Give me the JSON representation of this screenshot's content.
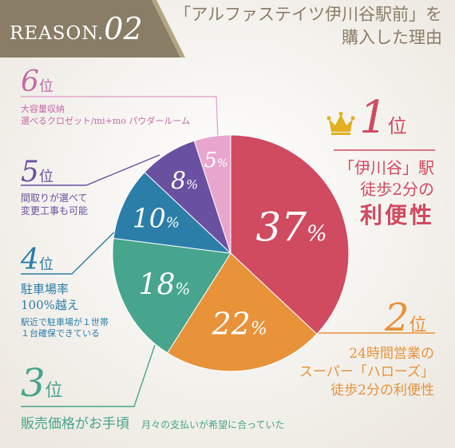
{
  "header": {
    "badge_prefix": "REASON.",
    "badge_num": "02",
    "title_line1": "「アルファステイツ伊川谷駅前」を",
    "title_line2": "購入した理由"
  },
  "colors": {
    "header_band": "#8a7d66",
    "accent_gold": "#a89565",
    "rank1": "#d04a60",
    "rank2": "#e8923a",
    "rank3": "#46a58c",
    "rank4": "#2b7ea8",
    "rank5": "#6a50a0",
    "rank6": "#e8a6cf",
    "crown": "#e0b020"
  },
  "chart_data": {
    "type": "pie",
    "title": "",
    "slices": [
      {
        "rank": 1,
        "value": 37,
        "label": "37",
        "unit": "%"
      },
      {
        "rank": 2,
        "value": 22,
        "label": "22",
        "unit": "%"
      },
      {
        "rank": 3,
        "value": 18,
        "label": "18",
        "unit": "%"
      },
      {
        "rank": 4,
        "value": 10,
        "label": "10",
        "unit": "%"
      },
      {
        "rank": 5,
        "value": 8,
        "label": "8",
        "unit": "%"
      },
      {
        "rank": 6,
        "value": 5,
        "label": "5",
        "unit": "%"
      }
    ],
    "start_angle": "top",
    "direction": "clockwise"
  },
  "ranks": {
    "suffix": "位",
    "r1": {
      "num": "1",
      "line1": "「伊川谷」駅",
      "line2": "徒歩2分の",
      "line3": "利便性"
    },
    "r2": {
      "num": "2",
      "line1": "24時間営業の",
      "line2": "スーパー「ハローズ」",
      "line3": "徒歩2分の利便性"
    },
    "r3": {
      "num": "3",
      "main": "販売価格がお手頃",
      "sub": "月々の支払いが希望に合っていた"
    },
    "r4": {
      "num": "4",
      "line1": "駐車場率",
      "line2": "100%越え",
      "sub1": "駅近で駐車場が１世帯",
      "sub2": "１台確保できている"
    },
    "r5": {
      "num": "5",
      "line1": "間取りが選べて",
      "line2": "変更工事も可能"
    },
    "r6": {
      "num": "6",
      "line1": "大容量収納",
      "line2": "選べるクロゼット/mi+mo パウダールーム"
    }
  }
}
